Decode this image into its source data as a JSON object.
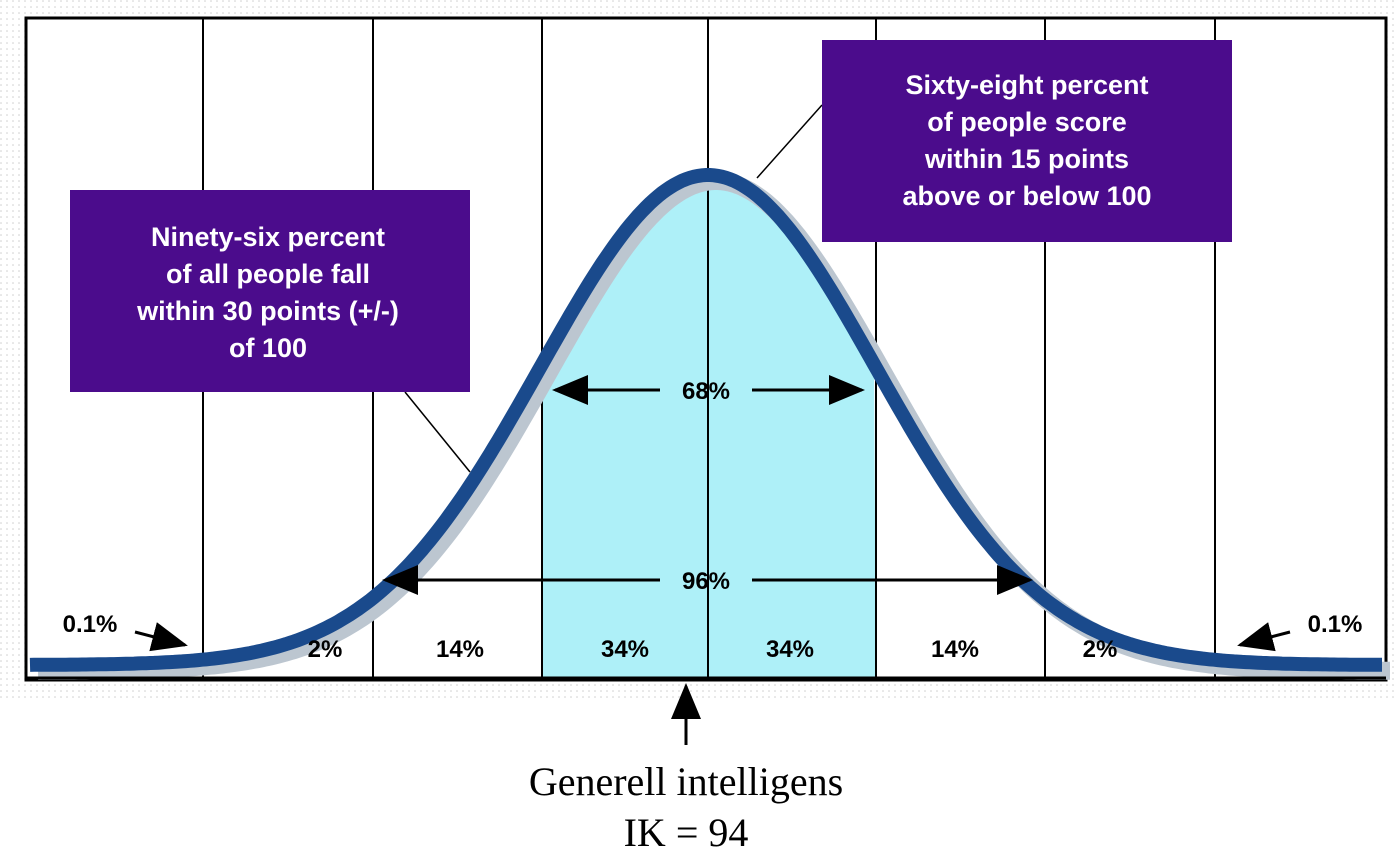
{
  "left_box": [
    "Ninety-six percent",
    "of all people fall",
    "within 30 points (+/-)",
    "of 100"
  ],
  "right_box": [
    "Sixty-eight percent",
    "of people score",
    "within 15 points",
    "above or below 100"
  ],
  "ranges": [
    "68%",
    "96%"
  ],
  "segments": [
    "0.1%",
    "2%",
    "14%",
    "34%",
    "34%",
    "14%",
    "2%",
    "0.1%"
  ],
  "caption": [
    "Generell intelligens",
    "IK = 94"
  ]
}
